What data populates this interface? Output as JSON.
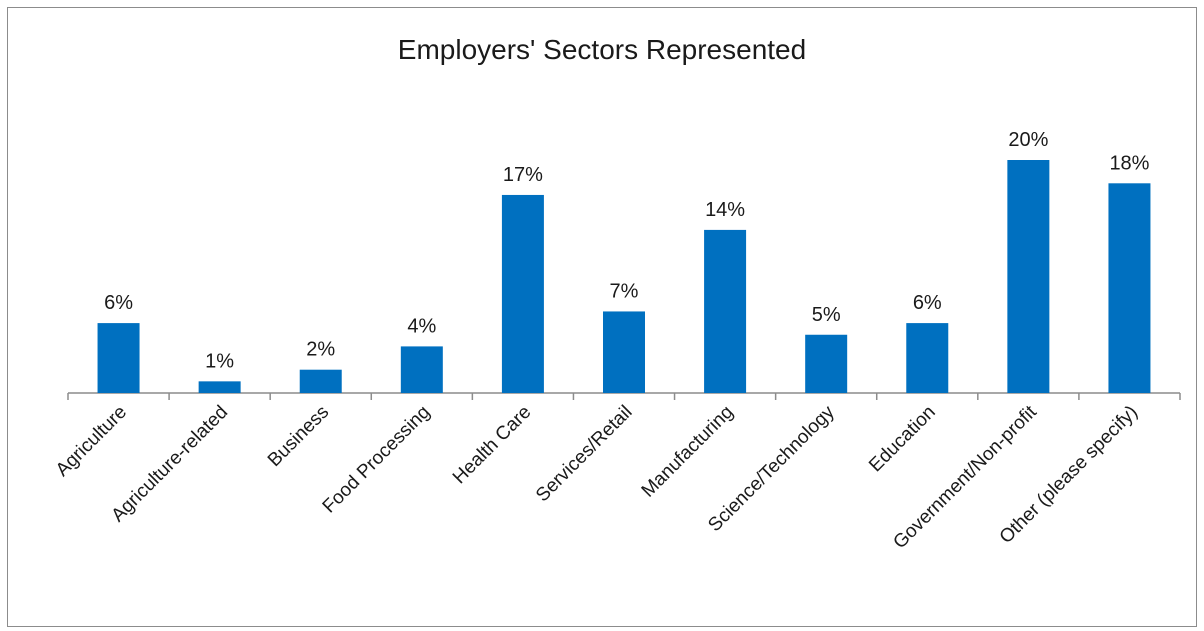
{
  "chart_data": {
    "type": "bar",
    "title": "Employers' Sectors Represented",
    "xlabel": "",
    "ylabel": "",
    "categories": [
      "Agriculture",
      "Agriculture-related",
      "Business",
      "Food Processing",
      "Health Care",
      "Services/Retail",
      "Manufacturing",
      "Science/Technology",
      "Education",
      "Government/Non-profit",
      "Other (please specify)"
    ],
    "values": [
      6,
      1,
      2,
      4,
      17,
      7,
      14,
      5,
      6,
      20,
      18
    ],
    "data_labels": [
      "6%",
      "1%",
      "2%",
      "4%",
      "17%",
      "7%",
      "14%",
      "5%",
      "6%",
      "20%",
      "18%"
    ],
    "value_unit": "%",
    "ylim": [
      0,
      20
    ],
    "grid": false,
    "legend": "none",
    "bar_color": "#0070C0"
  }
}
